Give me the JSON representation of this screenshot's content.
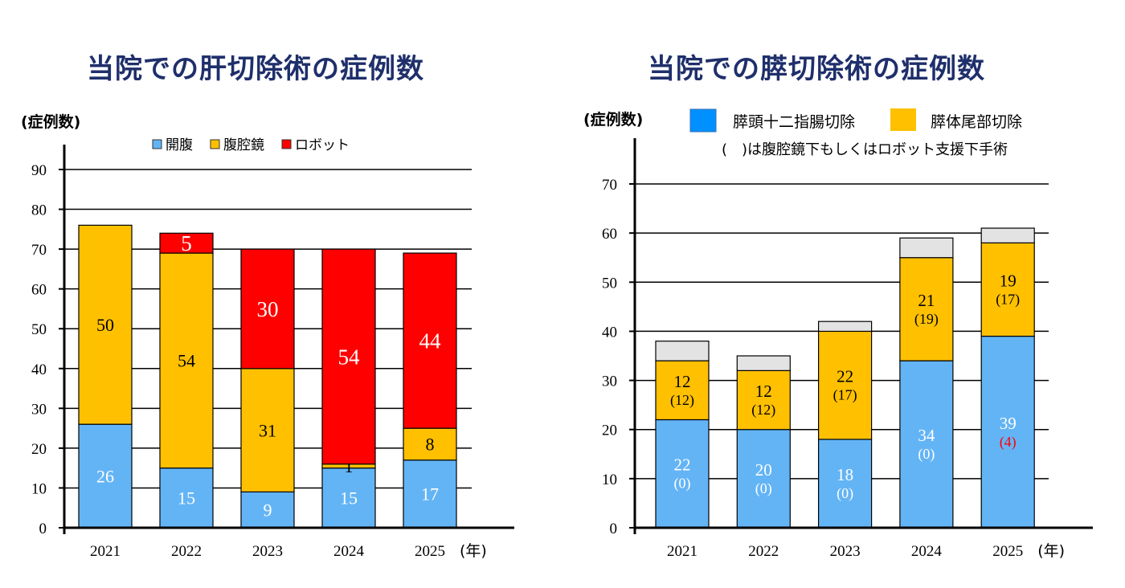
{
  "chart_data": [
    {
      "type": "bar",
      "stacked": true,
      "title": "当院での肝切除術の症例数",
      "ylabel": "(症例数)",
      "xlabel": "(年)",
      "categories": [
        "2021",
        "2022",
        "2023",
        "2024",
        "2025"
      ],
      "ylim": [
        0,
        90
      ],
      "yticks": [
        0,
        10,
        20,
        30,
        40,
        50,
        60,
        70,
        80,
        90
      ],
      "grid": true,
      "legend": "top",
      "series": [
        {
          "name": "開腹",
          "color": "#63b4f5",
          "label_color": "#ffffff",
          "values": [
            26,
            15,
            9,
            15,
            17
          ]
        },
        {
          "name": "腹腔鏡",
          "color": "#ffc000",
          "label_color": "#000000",
          "values": [
            50,
            54,
            31,
            1,
            8
          ]
        },
        {
          "name": "ロボット",
          "color": "#ff0000",
          "label_color": "#ffffff",
          "values": [
            0,
            5,
            30,
            54,
            44
          ]
        }
      ]
    },
    {
      "type": "bar",
      "stacked": true,
      "title": "当院での膵切除術の症例数",
      "ylabel": "(症例数)",
      "xlabel": "(年)",
      "note": "(　)は腹腔鏡下もしくはロボット支援下手術",
      "categories": [
        "2021",
        "2022",
        "2023",
        "2024",
        "2025"
      ],
      "ylim": [
        0,
        70
      ],
      "yticks": [
        0,
        10,
        20,
        30,
        40,
        50,
        60,
        70
      ],
      "grid": true,
      "legend": "top",
      "series": [
        {
          "name": "膵頭十二指腸切除",
          "color": "#63b4f5",
          "legend_color": "#0090ff",
          "label_color": "#ffffff",
          "values": [
            22,
            20,
            18,
            34,
            39
          ],
          "minimally_invasive": [
            0,
            0,
            0,
            0,
            4
          ],
          "paren_colors": [
            "#ffffff",
            "#ffffff",
            "#ffffff",
            "#ffffff",
            "#ff0000"
          ]
        },
        {
          "name": "膵体尾部切除",
          "color": "#ffc000",
          "label_color": "#000000",
          "values": [
            12,
            12,
            22,
            21,
            19
          ],
          "minimally_invasive": [
            12,
            12,
            17,
            19,
            17
          ]
        },
        {
          "color": "#e3e3e3",
          "values": [
            4,
            3,
            2,
            4,
            3
          ]
        }
      ]
    }
  ]
}
